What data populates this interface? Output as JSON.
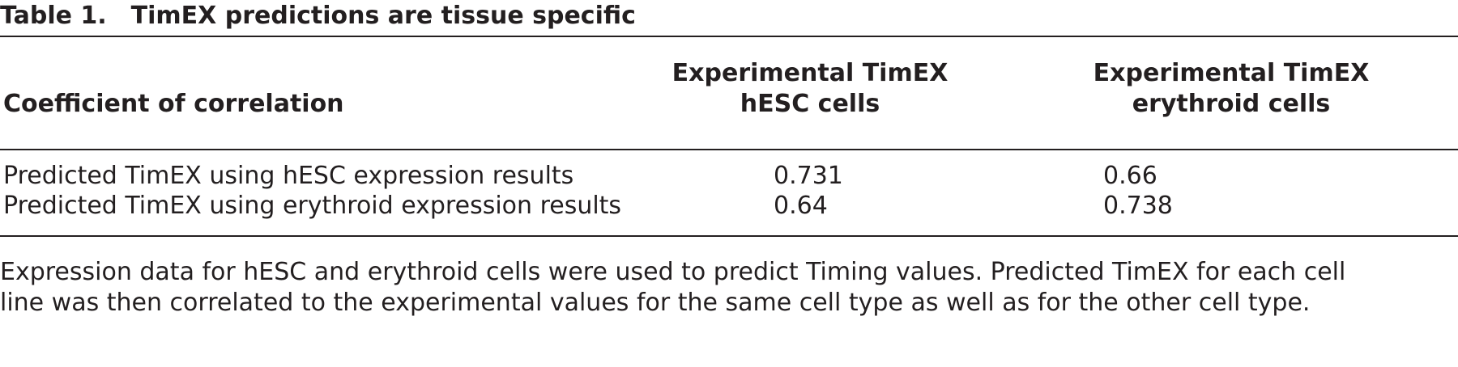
{
  "caption": {
    "label": "Table 1.",
    "title": "TimEX predictions are tissue specific"
  },
  "table": {
    "headers": [
      {
        "lines": [
          "Coefficient of correlation"
        ]
      },
      {
        "lines": [
          "Experimental TimEX",
          "hESC cells"
        ]
      },
      {
        "lines": [
          "Experimental TimEX",
          "erythroid cells"
        ]
      }
    ],
    "rows": [
      [
        "Predicted TimEX using hESC expression results",
        "0.731",
        "0.66"
      ],
      [
        "Predicted TimEX using erythroid expression results",
        "0.64",
        "0.738"
      ]
    ]
  },
  "footnote": {
    "lines": [
      "Expression data for hESC and erythroid cells were used to predict Timing values. Predicted TimEX for each cell",
      "line was then correlated to the experimental values for the same cell type as well as for the other cell type."
    ]
  }
}
